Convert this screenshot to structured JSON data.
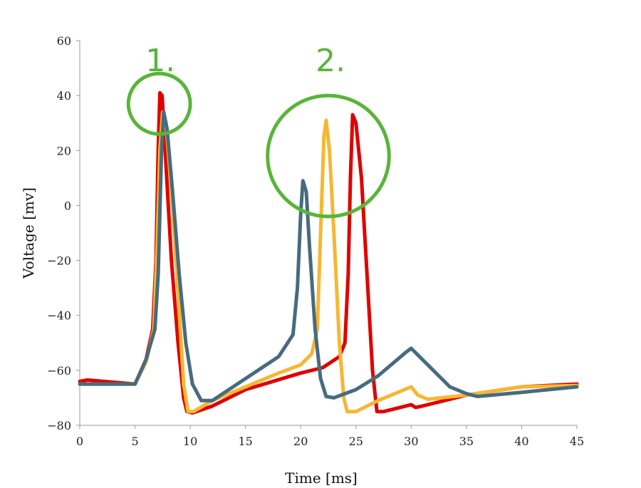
{
  "chart_data": {
    "type": "line",
    "xlabel": "Time [ms]",
    "ylabel": "Voltage [mv]",
    "xlim": [
      0,
      45
    ],
    "ylim": [
      -80,
      60
    ],
    "xticks": [
      "0",
      "5",
      "10",
      "15",
      "20",
      "25",
      "30",
      "35",
      "40",
      "45"
    ],
    "yticks": [
      "60",
      "40",
      "20",
      "0",
      "−20",
      "−40",
      "−60",
      "−80"
    ],
    "grid": false,
    "annotations": [
      {
        "text": "1.",
        "x": 7.3,
        "y": 53,
        "circle": {
          "cx": 7.2,
          "cy": 37,
          "rx": 2.8,
          "ry": 11
        }
      },
      {
        "text": "2.",
        "x": 22.7,
        "y": 53,
        "circle": {
          "cx": 22.5,
          "cy": 18,
          "rx": 5.5,
          "ry": 22
        }
      }
    ],
    "annotation_color": "#59b43a",
    "series": [
      {
        "color": "#e00000",
        "points": [
          [
            0,
            -64
          ],
          [
            0.7,
            -63.5
          ],
          [
            5,
            -65
          ],
          [
            6,
            -56
          ],
          [
            6.6,
            -45
          ],
          [
            6.9,
            -20
          ],
          [
            7.1,
            20
          ],
          [
            7.25,
            41
          ],
          [
            7.45,
            40
          ],
          [
            7.8,
            15
          ],
          [
            8.3,
            -20
          ],
          [
            8.9,
            -50
          ],
          [
            9.4,
            -70
          ],
          [
            9.7,
            -75
          ],
          [
            10.2,
            -75.5
          ],
          [
            12,
            -73
          ],
          [
            15,
            -67
          ],
          [
            20,
            -61
          ],
          [
            22,
            -59
          ],
          [
            23.5,
            -55
          ],
          [
            24,
            -50
          ],
          [
            24.3,
            -25
          ],
          [
            24.5,
            10
          ],
          [
            24.7,
            33
          ],
          [
            25,
            30
          ],
          [
            25.5,
            10
          ],
          [
            26,
            -25
          ],
          [
            26.5,
            -60
          ],
          [
            26.9,
            -75
          ],
          [
            27.5,
            -75
          ],
          [
            29,
            -73.5
          ],
          [
            30,
            -72.5
          ],
          [
            30.4,
            -73.5
          ],
          [
            31,
            -73
          ],
          [
            35,
            -69
          ],
          [
            40,
            -66
          ],
          [
            45,
            -65
          ]
        ]
      },
      {
        "color": "#f7b733",
        "points": [
          [
            0,
            -65
          ],
          [
            5,
            -65
          ],
          [
            6,
            -57
          ],
          [
            6.7,
            -45
          ],
          [
            7,
            -15
          ],
          [
            7.25,
            20
          ],
          [
            7.5,
            34
          ],
          [
            7.8,
            30
          ],
          [
            8.3,
            5
          ],
          [
            8.8,
            -25
          ],
          [
            9.4,
            -65
          ],
          [
            9.8,
            -75
          ],
          [
            10.3,
            -75
          ],
          [
            12,
            -71
          ],
          [
            15,
            -66
          ],
          [
            18,
            -61
          ],
          [
            20,
            -58
          ],
          [
            21,
            -54
          ],
          [
            21.5,
            -45
          ],
          [
            21.8,
            -10
          ],
          [
            22.1,
            25
          ],
          [
            22.3,
            31
          ],
          [
            22.6,
            20
          ],
          [
            23,
            -10
          ],
          [
            23.5,
            -50
          ],
          [
            23.9,
            -70
          ],
          [
            24.2,
            -75
          ],
          [
            25,
            -75
          ],
          [
            27,
            -71
          ],
          [
            30,
            -66
          ],
          [
            30.6,
            -69
          ],
          [
            31.5,
            -70.5
          ],
          [
            35,
            -69
          ],
          [
            40,
            -66
          ],
          [
            45,
            -65.5
          ]
        ]
      },
      {
        "color": "#476b80",
        "points": [
          [
            0,
            -65
          ],
          [
            5,
            -65
          ],
          [
            6,
            -56
          ],
          [
            6.8,
            -45
          ],
          [
            7.1,
            -25
          ],
          [
            7.4,
            20
          ],
          [
            7.6,
            34
          ],
          [
            7.9,
            28
          ],
          [
            8.4,
            5
          ],
          [
            9,
            -25
          ],
          [
            9.6,
            -50
          ],
          [
            10.2,
            -65
          ],
          [
            11,
            -71
          ],
          [
            12,
            -71
          ],
          [
            15,
            -63
          ],
          [
            18,
            -55
          ],
          [
            19.3,
            -47
          ],
          [
            19.7,
            -30
          ],
          [
            20,
            -3
          ],
          [
            20.2,
            9
          ],
          [
            20.5,
            5
          ],
          [
            20.8,
            -15
          ],
          [
            21.3,
            -45
          ],
          [
            21.8,
            -63
          ],
          [
            22.3,
            -69.5
          ],
          [
            23,
            -70
          ],
          [
            25,
            -67
          ],
          [
            27,
            -62
          ],
          [
            29.5,
            -53.5
          ],
          [
            30,
            -52
          ],
          [
            30.5,
            -54
          ],
          [
            32,
            -60
          ],
          [
            33.5,
            -66
          ],
          [
            35,
            -68.5
          ],
          [
            36,
            -69.5
          ],
          [
            40,
            -68
          ],
          [
            45,
            -66
          ]
        ]
      }
    ]
  }
}
